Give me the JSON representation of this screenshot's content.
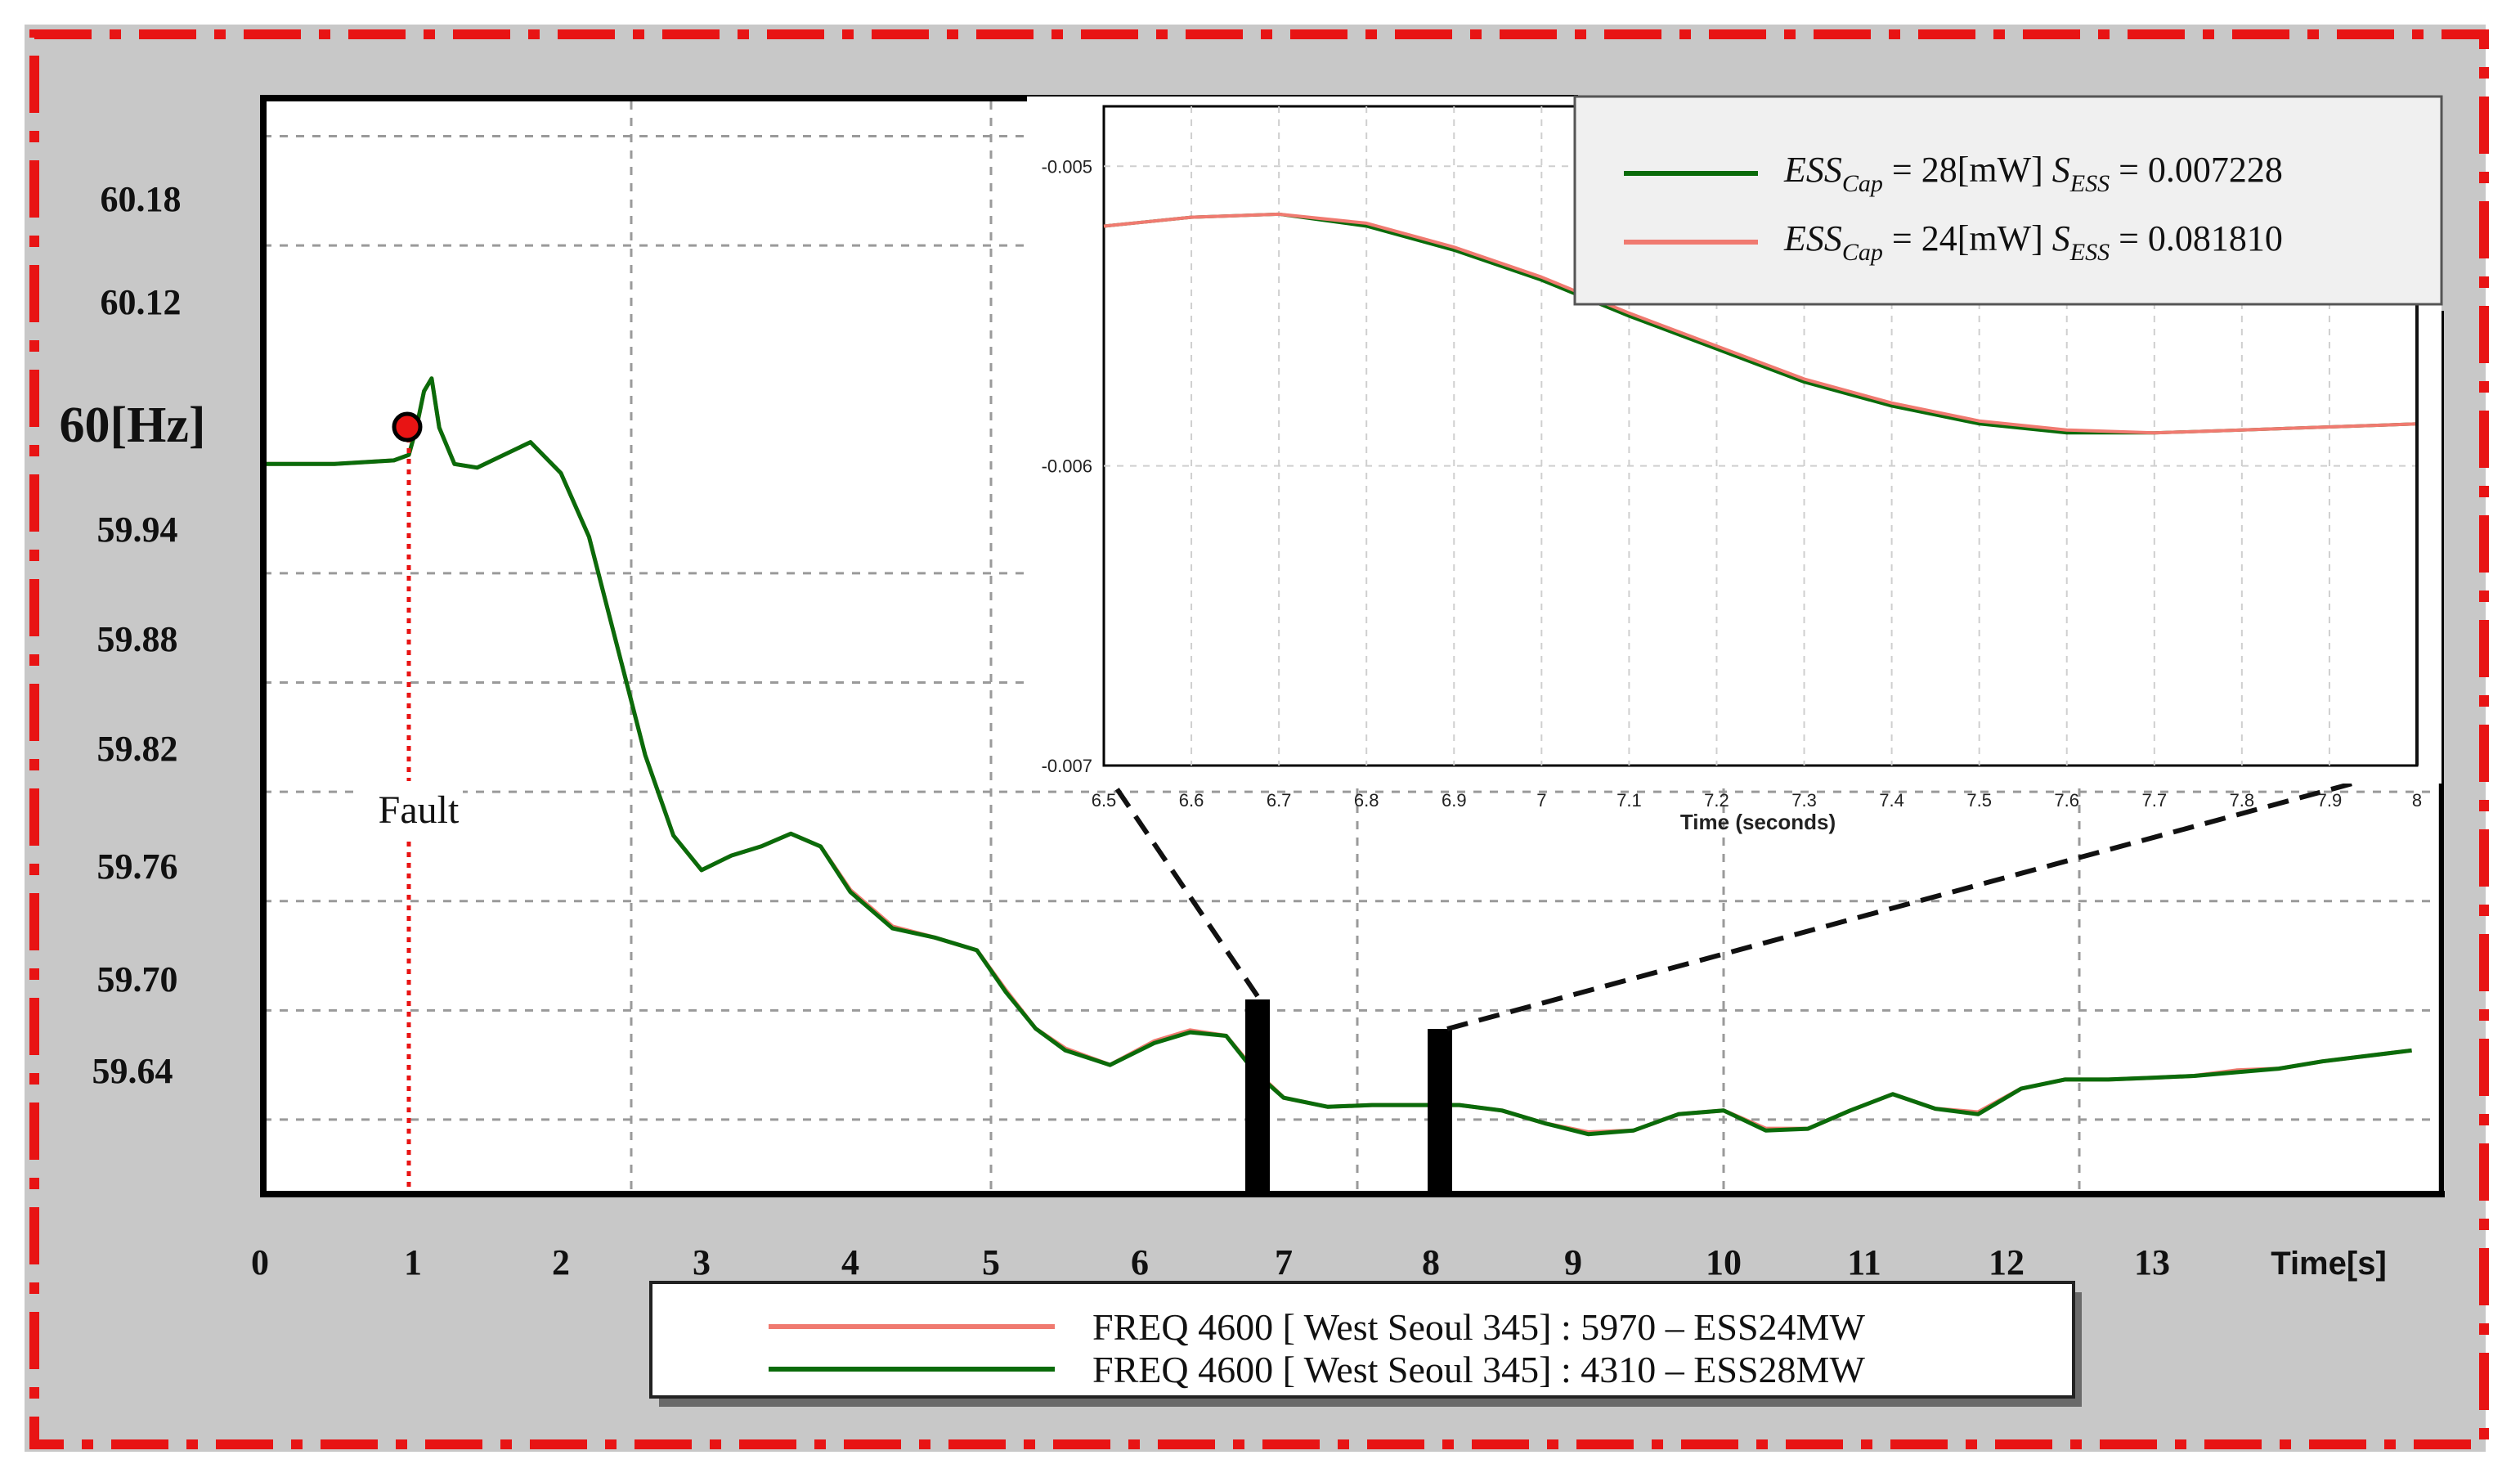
{
  "colors": {
    "esscap28": "#0a6b0a",
    "esscap24": "#f07a70",
    "frame_dash": "#e81414",
    "background": "#c8c8c8",
    "plot_bg": "#ffffff",
    "fault_marker": "#e81414"
  },
  "main_chart": {
    "y_ticks": [
      "60.18",
      "60.12",
      "60[Hz]",
      "59.94",
      "59.88",
      "59.82",
      "59.76",
      "59.70",
      "59.64"
    ],
    "x_ticks": [
      "0",
      "1",
      "2",
      "3",
      "4",
      "5",
      "6",
      "7",
      "8",
      "9",
      "10",
      "11",
      "12",
      "13"
    ],
    "x_axis_label": "Time[s]",
    "fault_label": "Fault",
    "legend": [
      {
        "label": "FREQ 4600 [ West Seoul 345] : 5970 – ESS24MW",
        "color_key": "esscap24"
      },
      {
        "label": "FREQ 4600 [ West Seoul 345] : 4310 – ESS28MW",
        "color_key": "esscap28"
      }
    ]
  },
  "inset": {
    "y_ticks": [
      "-0.005",
      "-0.006",
      "-0.007"
    ],
    "x_ticks": [
      "6.5",
      "6.6",
      "6.7",
      "6.8",
      "6.9",
      "7",
      "7.1",
      "7.2",
      "7.3",
      "7.4",
      "7.5",
      "7.6",
      "7.7",
      "7.8",
      "7.9",
      "8"
    ],
    "x_axis_label": "Time (seconds)",
    "legend": [
      {
        "prefix": "ESS",
        "sub1": "Cap",
        "eq1": " = 28[mW] ",
        "mid": "S",
        "sub2": "ESS",
        "eq2": " = 0.007228",
        "color_key": "esscap28"
      },
      {
        "prefix": "ESS",
        "sub1": "Cap",
        "eq1": " = 24[mW] ",
        "mid": "S",
        "sub2": "ESS",
        "eq2": " = 0.081810",
        "color_key": "esscap24"
      }
    ]
  },
  "chart_data": [
    {
      "type": "line",
      "title": "",
      "xlabel": "Time[s]",
      "ylabel": "",
      "xlim": [
        0,
        14.8
      ],
      "ylim": [
        59.6,
        60.2
      ],
      "annotations": [
        {
          "text": "Fault",
          "x": 1.0
        }
      ],
      "series": [
        {
          "name": "FREQ 4600 [ West Seoul 345] : 4310 – ESS28MW",
          "x": [
            0,
            0.5,
            0.9,
            1.0,
            1.05,
            1.1,
            1.15,
            1.2,
            1.3,
            1.45,
            1.6,
            1.8,
            2.0,
            2.2,
            2.4,
            2.6,
            2.8,
            3.0,
            3.2,
            3.4,
            3.6,
            3.8,
            4.0,
            4.3,
            4.6,
            4.9,
            5.1,
            5.3,
            5.5,
            5.8,
            6.1,
            6.35,
            6.6,
            6.8,
            7.0,
            7.3,
            7.6,
            7.9,
            8.2,
            8.5,
            8.8,
            9.1,
            9.4,
            9.7,
            10.0,
            10.3,
            10.6,
            10.9,
            11.2,
            11.5,
            11.8,
            12.1,
            12.4,
            12.7,
            13.0,
            13.3,
            13.6,
            13.9,
            14.2,
            14.5,
            14.8
          ],
          "y": [
            60.0,
            60.0,
            60.002,
            60.005,
            60.02,
            60.04,
            60.047,
            60.02,
            60.0,
            59.998,
            60.004,
            60.012,
            59.995,
            59.96,
            59.9,
            59.84,
            59.796,
            59.777,
            59.785,
            59.79,
            59.797,
            59.79,
            59.765,
            59.745,
            59.74,
            59.733,
            59.71,
            59.69,
            59.678,
            59.67,
            59.682,
            59.688,
            59.686,
            59.666,
            59.652,
            59.647,
            59.648,
            59.648,
            59.648,
            59.645,
            59.638,
            59.632,
            59.634,
            59.643,
            59.645,
            59.634,
            59.635,
            59.645,
            59.654,
            59.646,
            59.643,
            59.657,
            59.662,
            59.662,
            59.663,
            59.664,
            59.666,
            59.668,
            59.672,
            59.675,
            59.678
          ]
        },
        {
          "name": "FREQ 4600 [ West Seoul 345] : 5970 – ESS24MW",
          "x": [
            0,
            0.5,
            0.9,
            1.0,
            1.05,
            1.1,
            1.15,
            1.2,
            1.3,
            1.45,
            1.6,
            1.8,
            2.0,
            2.2,
            2.4,
            2.6,
            2.8,
            3.0,
            3.2,
            3.4,
            3.6,
            3.8,
            4.0,
            4.3,
            4.6,
            4.9,
            5.1,
            5.3,
            5.5,
            5.8,
            6.1,
            6.35,
            6.6,
            6.8,
            7.0,
            7.3,
            7.6,
            7.9,
            8.2,
            8.5,
            8.8,
            9.1,
            9.4,
            9.7,
            10.0,
            10.3,
            10.6,
            10.9,
            11.2,
            11.5,
            11.8,
            12.1,
            12.4,
            12.7,
            13.0,
            13.3,
            13.6,
            13.9,
            14.2,
            14.5,
            14.8
          ],
          "y": [
            60.0,
            60.0,
            60.002,
            60.005,
            60.02,
            60.04,
            60.047,
            60.02,
            60.0,
            59.998,
            60.004,
            60.012,
            59.995,
            59.96,
            59.9,
            59.84,
            59.796,
            59.777,
            59.785,
            59.79,
            59.797,
            59.79,
            59.766,
            59.746,
            59.74,
            59.733,
            59.711,
            59.69,
            59.679,
            59.67,
            59.683,
            59.689,
            59.686,
            59.667,
            59.652,
            59.647,
            59.648,
            59.648,
            59.648,
            59.645,
            59.638,
            59.633,
            59.634,
            59.643,
            59.645,
            59.635,
            59.635,
            59.645,
            59.654,
            59.646,
            59.644,
            59.657,
            59.662,
            59.662,
            59.663,
            59.664,
            59.667,
            59.668,
            59.672,
            59.675,
            59.678
          ]
        }
      ]
    },
    {
      "type": "line",
      "title": "",
      "xlabel": "Time (seconds)",
      "ylabel": "",
      "xlim": [
        6.5,
        8.0
      ],
      "ylim": [
        -0.007,
        -0.0048
      ],
      "series": [
        {
          "name": "ESSCap = 28[mW] SESS = 0.007228",
          "x": [
            6.5,
            6.6,
            6.7,
            6.8,
            6.9,
            7.0,
            7.1,
            7.2,
            7.3,
            7.4,
            7.5,
            7.6,
            7.7,
            7.8,
            7.9,
            8.0
          ],
          "y": [
            -0.0052,
            -0.00517,
            -0.00516,
            -0.0052,
            -0.00528,
            -0.00538,
            -0.0055,
            -0.00561,
            -0.00572,
            -0.0058,
            -0.00586,
            -0.00589,
            -0.00589,
            -0.00588,
            -0.00587,
            -0.00586
          ]
        },
        {
          "name": "ESSCap = 24[mW] SESS = 0.081810",
          "x": [
            6.5,
            6.6,
            6.7,
            6.8,
            6.9,
            7.0,
            7.1,
            7.2,
            7.3,
            7.4,
            7.5,
            7.6,
            7.7,
            7.8,
            7.9,
            8.0
          ],
          "y": [
            -0.0052,
            -0.00517,
            -0.00516,
            -0.00519,
            -0.00527,
            -0.00537,
            -0.00549,
            -0.0056,
            -0.00571,
            -0.00579,
            -0.00585,
            -0.00588,
            -0.00589,
            -0.00588,
            -0.00587,
            -0.00586
          ]
        }
      ]
    }
  ]
}
